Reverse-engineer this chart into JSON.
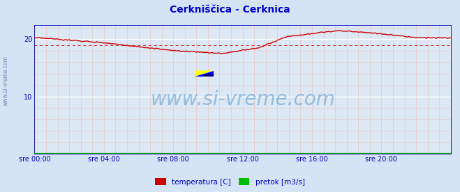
{
  "title": "Cerkniščica - Cerknica",
  "title_color": "#0000cc",
  "bg_color": "#d4e4f4",
  "plot_bg_color": "#dce8f4",
  "grid_color_white": "#ffffff",
  "grid_color_pink": "#e8c8c8",
  "axis_color": "#0000bb",
  "ylim": [
    0,
    22.5
  ],
  "yticks": [
    10,
    20
  ],
  "xlim": [
    0,
    288
  ],
  "xtick_positions": [
    0,
    48,
    96,
    144,
    192,
    240
  ],
  "xtick_labels": [
    "sre 00:00",
    "sre 04:00",
    "sre 08:00",
    "sre 12:00",
    "sre 16:00",
    "sre 20:00"
  ],
  "watermark_text": "www.si-vreme.com",
  "watermark_color": "#5599cc",
  "sidewater_color": "#5577aa",
  "temp_color": "#cc0000",
  "pretok_color": "#00aa00",
  "avg_value": 19.0,
  "avg_color": "#cc0000",
  "legend_labels": [
    "temperatura [C]",
    "pretok [m3/s]"
  ],
  "legend_colors": [
    "#cc0000",
    "#00bb00"
  ],
  "logo_yellow": "#ffff00",
  "logo_blue": "#0000ff",
  "logo_darkblue": "#000088"
}
